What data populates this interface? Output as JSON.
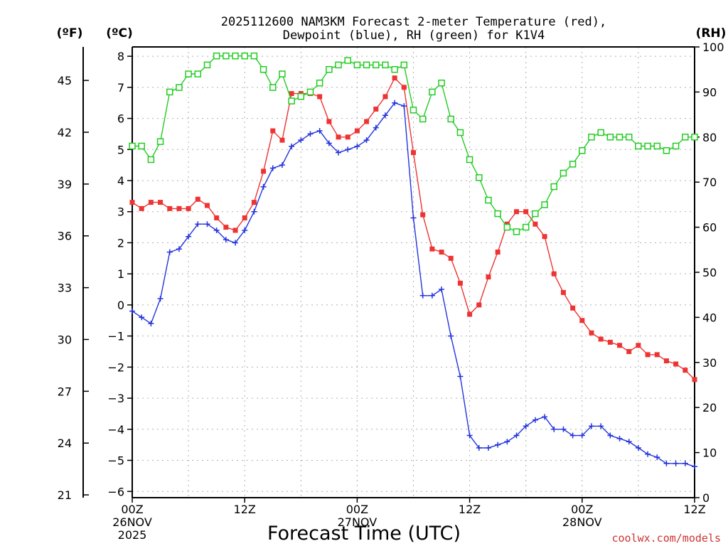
{
  "chart_data": {
    "type": "line",
    "title_lines": [
      "2025112600 NAM3KM Forecast 2-meter Temperature (red),",
      "Dewpoint (blue), RH (green) for K1V4"
    ],
    "units": {
      "fahrenheit": "(ºF)",
      "celsius": "(ºC)",
      "rh": "(RH)"
    },
    "xlabel": "Forecast Time (UTC)",
    "credit": "coolwx.com/models",
    "x_range_hours": [
      0,
      60
    ],
    "celsius_range": [
      -6.2,
      8.3
    ],
    "rh_range": [
      0,
      100
    ],
    "celsius_ticks": [
      "8",
      "7",
      "6",
      "5",
      "4",
      "3",
      "2",
      "1",
      "0",
      "−1",
      "−2",
      "−3",
      "−4",
      "−5",
      "−6"
    ],
    "celsius_tick_values": [
      8,
      7,
      6,
      5,
      4,
      3,
      2,
      1,
      0,
      -1,
      -2,
      -3,
      -4,
      -5,
      -6
    ],
    "fahrenheit_ticks": [
      "45",
      "42",
      "39",
      "36",
      "33",
      "30",
      "27",
      "24",
      "21"
    ],
    "fahrenheit_tick_values": [
      45,
      42,
      39,
      36,
      33,
      30,
      27,
      24,
      21
    ],
    "rh_ticks": [
      "100",
      "90",
      "80",
      "70",
      "60",
      "50",
      "40",
      "30",
      "20",
      "10",
      "0"
    ],
    "rh_tick_values": [
      100,
      90,
      80,
      70,
      60,
      50,
      40,
      30,
      20,
      10,
      0
    ],
    "x_ticks": [
      {
        "hour": 0,
        "lines": [
          "00Z",
          "26NOV",
          "2025"
        ]
      },
      {
        "hour": 12,
        "lines": [
          "12Z"
        ]
      },
      {
        "hour": 24,
        "lines": [
          "00Z",
          "27NOV"
        ]
      },
      {
        "hour": 36,
        "lines": [
          "12Z"
        ]
      },
      {
        "hour": 48,
        "lines": [
          "00Z",
          "28NOV"
        ]
      },
      {
        "hour": 60,
        "lines": [
          "12Z"
        ]
      }
    ],
    "series": [
      {
        "name": "2-meter Temperature",
        "unit": "C",
        "color": "#ee3333",
        "marker": "filled-square",
        "points": [
          [
            0,
            3.3
          ],
          [
            1,
            3.1
          ],
          [
            2,
            3.3
          ],
          [
            3,
            3.3
          ],
          [
            4,
            3.1
          ],
          [
            5,
            3.1
          ],
          [
            6,
            3.1
          ],
          [
            7,
            3.4
          ],
          [
            8,
            3.2
          ],
          [
            9,
            2.8
          ],
          [
            10,
            2.5
          ],
          [
            11,
            2.4
          ],
          [
            12,
            2.8
          ],
          [
            13,
            3.3
          ],
          [
            14,
            4.3
          ],
          [
            15,
            5.6
          ],
          [
            16,
            5.3
          ],
          [
            17,
            6.8
          ],
          [
            18,
            6.8
          ],
          [
            19,
            6.8
          ],
          [
            20,
            6.7
          ],
          [
            21,
            5.9
          ],
          [
            22,
            5.4
          ],
          [
            23,
            5.4
          ],
          [
            24,
            5.6
          ],
          [
            25,
            5.9
          ],
          [
            26,
            6.3
          ],
          [
            27,
            6.7
          ],
          [
            28,
            7.3
          ],
          [
            29,
            7.0
          ],
          [
            30,
            4.9
          ],
          [
            31,
            2.9
          ],
          [
            32,
            1.8
          ],
          [
            33,
            1.7
          ],
          [
            34,
            1.5
          ],
          [
            35,
            0.7
          ],
          [
            36,
            -0.3
          ],
          [
            37,
            0.0
          ],
          [
            38,
            0.9
          ],
          [
            39,
            1.7
          ],
          [
            40,
            2.6
          ],
          [
            41,
            3.0
          ],
          [
            42,
            3.0
          ],
          [
            43,
            2.6
          ],
          [
            44,
            2.2
          ],
          [
            45,
            1.0
          ],
          [
            46,
            0.4
          ],
          [
            47,
            -0.1
          ],
          [
            48,
            -0.5
          ],
          [
            49,
            -0.9
          ],
          [
            50,
            -1.1
          ],
          [
            51,
            -1.2
          ],
          [
            52,
            -1.3
          ],
          [
            53,
            -1.5
          ],
          [
            54,
            -1.3
          ],
          [
            55,
            -1.6
          ],
          [
            56,
            -1.6
          ],
          [
            57,
            -1.8
          ],
          [
            58,
            -1.9
          ],
          [
            59,
            -2.1
          ],
          [
            60,
            -2.4
          ]
        ]
      },
      {
        "name": "Dewpoint",
        "unit": "C",
        "color": "#2233dd",
        "marker": "plus",
        "points": [
          [
            0,
            -0.2
          ],
          [
            1,
            -0.4
          ],
          [
            2,
            -0.6
          ],
          [
            3,
            0.2
          ],
          [
            4,
            1.7
          ],
          [
            5,
            1.8
          ],
          [
            6,
            2.2
          ],
          [
            7,
            2.6
          ],
          [
            8,
            2.6
          ],
          [
            9,
            2.4
          ],
          [
            10,
            2.1
          ],
          [
            11,
            2.0
          ],
          [
            12,
            2.4
          ],
          [
            13,
            3.0
          ],
          [
            14,
            3.8
          ],
          [
            15,
            4.4
          ],
          [
            16,
            4.5
          ],
          [
            17,
            5.1
          ],
          [
            18,
            5.3
          ],
          [
            19,
            5.5
          ],
          [
            20,
            5.6
          ],
          [
            21,
            5.2
          ],
          [
            22,
            4.9
          ],
          [
            23,
            5.0
          ],
          [
            24,
            5.1
          ],
          [
            25,
            5.3
          ],
          [
            26,
            5.7
          ],
          [
            27,
            6.1
          ],
          [
            28,
            6.5
          ],
          [
            29,
            6.4
          ],
          [
            30,
            2.8
          ],
          [
            31,
            0.3
          ],
          [
            32,
            0.3
          ],
          [
            33,
            0.5
          ],
          [
            34,
            -1.0
          ],
          [
            35,
            -2.3
          ],
          [
            36,
            -4.2
          ],
          [
            37,
            -4.6
          ],
          [
            38,
            -4.6
          ],
          [
            39,
            -4.5
          ],
          [
            40,
            -4.4
          ],
          [
            41,
            -4.2
          ],
          [
            42,
            -3.9
          ],
          [
            43,
            -3.7
          ],
          [
            44,
            -3.6
          ],
          [
            45,
            -4.0
          ],
          [
            46,
            -4.0
          ],
          [
            47,
            -4.2
          ],
          [
            48,
            -4.2
          ],
          [
            49,
            -3.9
          ],
          [
            50,
            -3.9
          ],
          [
            51,
            -4.2
          ],
          [
            52,
            -4.3
          ],
          [
            53,
            -4.4
          ],
          [
            54,
            -4.6
          ],
          [
            55,
            -4.8
          ],
          [
            56,
            -4.9
          ],
          [
            57,
            -5.1
          ],
          [
            58,
            -5.1
          ],
          [
            59,
            -5.1
          ],
          [
            60,
            -5.2
          ]
        ]
      },
      {
        "name": "RH",
        "unit": "%",
        "color": "#22cc22",
        "marker": "open-square",
        "points": [
          [
            0,
            78
          ],
          [
            1,
            78
          ],
          [
            2,
            75
          ],
          [
            3,
            79
          ],
          [
            4,
            90
          ],
          [
            5,
            91
          ],
          [
            6,
            94
          ],
          [
            7,
            94
          ],
          [
            8,
            96
          ],
          [
            9,
            98
          ],
          [
            10,
            98
          ],
          [
            11,
            98
          ],
          [
            12,
            98
          ],
          [
            13,
            98
          ],
          [
            14,
            95
          ],
          [
            15,
            91
          ],
          [
            16,
            94
          ],
          [
            17,
            88
          ],
          [
            18,
            89
          ],
          [
            19,
            90
          ],
          [
            20,
            92
          ],
          [
            21,
            95
          ],
          [
            22,
            96
          ],
          [
            23,
            97
          ],
          [
            24,
            96
          ],
          [
            25,
            96
          ],
          [
            26,
            96
          ],
          [
            27,
            96
          ],
          [
            28,
            95
          ],
          [
            29,
            96
          ],
          [
            30,
            86
          ],
          [
            31,
            84
          ],
          [
            32,
            90
          ],
          [
            33,
            92
          ],
          [
            34,
            84
          ],
          [
            35,
            81
          ],
          [
            36,
            75
          ],
          [
            37,
            71
          ],
          [
            38,
            66
          ],
          [
            39,
            63
          ],
          [
            40,
            60
          ],
          [
            41,
            59
          ],
          [
            42,
            60
          ],
          [
            43,
            63
          ],
          [
            44,
            65
          ],
          [
            45,
            69
          ],
          [
            46,
            72
          ],
          [
            47,
            74
          ],
          [
            48,
            77
          ],
          [
            49,
            80
          ],
          [
            50,
            81
          ],
          [
            51,
            80
          ],
          [
            52,
            80
          ],
          [
            53,
            80
          ],
          [
            54,
            78
          ],
          [
            55,
            78
          ],
          [
            56,
            78
          ],
          [
            57,
            77
          ],
          [
            58,
            78
          ],
          [
            59,
            80
          ],
          [
            60,
            80
          ]
        ]
      }
    ]
  }
}
